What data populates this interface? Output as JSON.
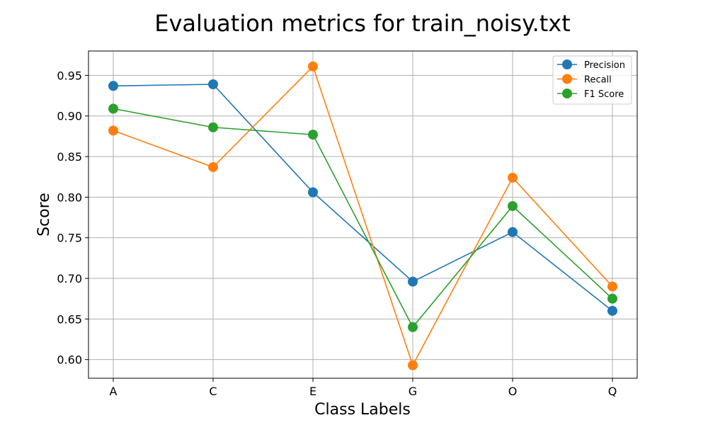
{
  "chart_data": {
    "type": "line",
    "title": "Evaluation metrics for train_noisy.txt",
    "xlabel": "Class Labels",
    "ylabel": "Score",
    "categories": [
      "A",
      "C",
      "E",
      "G",
      "O",
      "Q"
    ],
    "ylim": [
      0.577,
      0.98
    ],
    "yticks": [
      0.6,
      0.65,
      0.7,
      0.75,
      0.8,
      0.85,
      0.9,
      0.95
    ],
    "grid": true,
    "legend_position": "top-right",
    "series": [
      {
        "name": "Precision",
        "color": "#1f77b4",
        "values": [
          0.937,
          0.939,
          0.806,
          0.696,
          0.757,
          0.66
        ]
      },
      {
        "name": "Recall",
        "color": "#ff7f0e",
        "values": [
          0.882,
          0.837,
          0.961,
          0.593,
          0.824,
          0.69
        ]
      },
      {
        "name": "F1 Score",
        "color": "#2ca02c",
        "values": [
          0.909,
          0.886,
          0.877,
          0.64,
          0.789,
          0.675
        ]
      }
    ]
  }
}
